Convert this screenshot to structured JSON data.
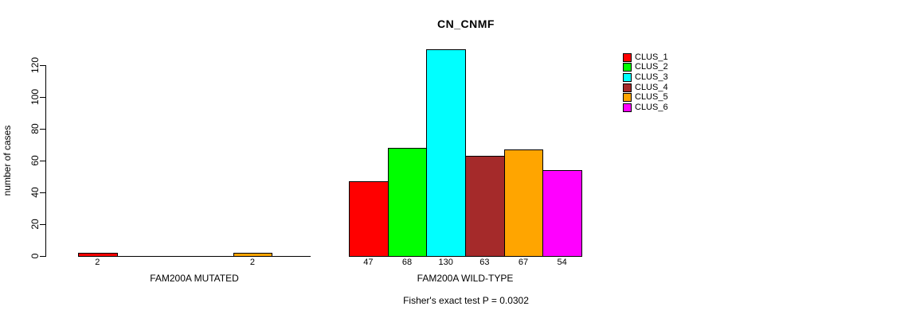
{
  "chart_data": {
    "type": "bar",
    "title": "CN_CNMF",
    "ylabel": "number of cases",
    "ylim": [
      0,
      130
    ],
    "yticks": [
      0,
      20,
      40,
      60,
      80,
      100,
      120
    ],
    "grid": false,
    "legend_position": "top-right",
    "categories": [
      "FAM200A MUTATED",
      "FAM200A WILD-TYPE"
    ],
    "series": [
      {
        "name": "CLUS_1",
        "color": "#FF0000",
        "values": [
          2,
          47
        ]
      },
      {
        "name": "CLUS_2",
        "color": "#00FF00",
        "values": [
          0,
          68
        ]
      },
      {
        "name": "CLUS_3",
        "color": "#00FFFF",
        "values": [
          0,
          130
        ]
      },
      {
        "name": "CLUS_4",
        "color": "#A52A2A",
        "values": [
          0,
          63
        ]
      },
      {
        "name": "CLUS_5",
        "color": "#FFA500",
        "values": [
          2,
          67
        ]
      },
      {
        "name": "CLUS_6",
        "color": "#FF00FF",
        "values": [
          0,
          54
        ]
      }
    ],
    "annotation": "Fisher's exact test P = 0.0302"
  }
}
